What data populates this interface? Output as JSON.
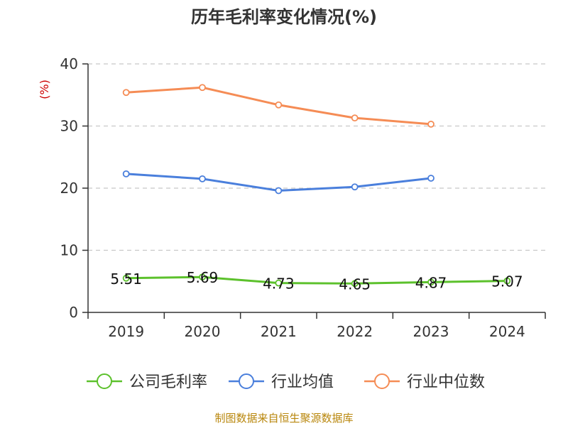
{
  "chart_data": {
    "type": "line",
    "title": "历年毛利率变化情况(%)",
    "ylabel": "(%)",
    "xlabel": "",
    "ylim": [
      0,
      40
    ],
    "yticks": [
      0,
      10,
      20,
      30,
      40
    ],
    "categories": [
      "2019",
      "2020",
      "2021",
      "2022",
      "2023",
      "2024"
    ],
    "grid": true,
    "legend_position": "bottom",
    "series": [
      {
        "name": "公司毛利率",
        "color": "#5cc12c",
        "values": [
          5.51,
          5.69,
          4.73,
          4.65,
          4.87,
          5.07
        ],
        "labels": [
          "5.51",
          "5.69",
          "4.73",
          "4.65",
          "4.87",
          "5.07"
        ]
      },
      {
        "name": "行业均值",
        "color": "#4a7fdc",
        "values": [
          22.3,
          21.5,
          19.6,
          20.2,
          21.6,
          null
        ]
      },
      {
        "name": "行业中位数",
        "color": "#f58c55",
        "values": [
          35.4,
          36.2,
          33.4,
          31.3,
          30.3,
          null
        ]
      }
    ],
    "source": "制图数据来自恒生聚源数据库"
  }
}
